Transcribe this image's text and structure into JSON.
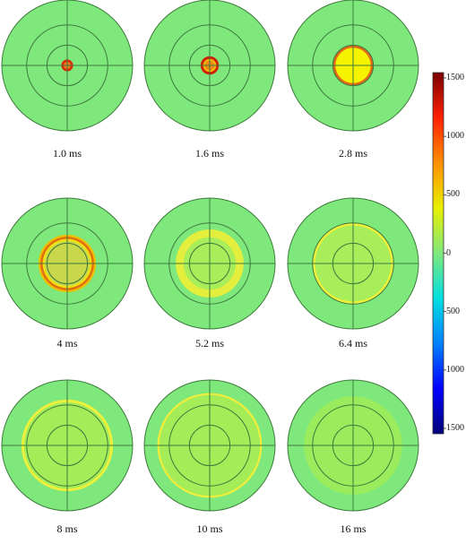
{
  "panels": [
    {
      "label": "1.0 ms",
      "rings": [
        {
          "r": 0.09,
          "color": "#d92a08",
          "fill": true
        },
        {
          "r": 0.055,
          "color": "#f07a1a",
          "fill": true
        }
      ]
    },
    {
      "label": "1.6 ms",
      "rings": [
        {
          "r": 0.14,
          "color": "#d21f07",
          "fill": true
        },
        {
          "r": 0.1,
          "color": "#f0c000",
          "fill": true
        },
        {
          "r": 0.075,
          "color": "#f08a18",
          "fill": true
        }
      ]
    },
    {
      "label": "2.8 ms",
      "rings": [
        {
          "r": 0.31,
          "color": "#e06818",
          "fill": true
        },
        {
          "r": 0.27,
          "color": "#f5f300",
          "fill": true
        }
      ]
    },
    {
      "label": "4 ms",
      "rings": [
        {
          "r": 0.44,
          "color": "#f0c000",
          "fill": true
        },
        {
          "r": 0.41,
          "color": "#e07010",
          "fill": true
        },
        {
          "r": 0.375,
          "color": "#f1e010",
          "fill": true
        },
        {
          "r": 0.345,
          "color": "#c9d84a",
          "fill": true
        }
      ]
    },
    {
      "label": "5.2 ms",
      "rings": [
        {
          "r": 0.52,
          "color": "#e4ee3c",
          "fill": true
        },
        {
          "r": 0.4,
          "color": "#a8ed5a",
          "fill": true
        }
      ]
    },
    {
      "label": "6.4 ms",
      "rings": [
        {
          "r": 0.62,
          "color": "#eef03a",
          "fill": true
        },
        {
          "r": 0.58,
          "color": "#a8ed5a",
          "fill": true
        }
      ]
    },
    {
      "label": "8 ms",
      "rings": [
        {
          "r": 0.7,
          "color": "#eef03a",
          "fill": true
        },
        {
          "r": 0.66,
          "color": "#a4ec58",
          "fill": true
        }
      ]
    },
    {
      "label": "10 ms",
      "rings": [
        {
          "r": 0.8,
          "color": "#f0ee3a",
          "fill": true
        },
        {
          "r": 0.77,
          "color": "#a4ec58",
          "fill": true
        }
      ]
    },
    {
      "label": "16 ms",
      "rings": [
        {
          "r": 0.75,
          "color": "#9aec5c",
          "fill": true
        }
      ]
    }
  ],
  "colors": {
    "background": "#7fe87c",
    "gridline": "#3e7a3e"
  },
  "colorbar": {
    "stops": [
      "#00007a",
      "#0000ff",
      "#0080ff",
      "#00e0e0",
      "#7fe87c",
      "#e8f000",
      "#ff9000",
      "#ff2000",
      "#7a0000"
    ],
    "ticks": [
      "1500",
      "1000",
      "500",
      "0",
      "500",
      "1000",
      "1500"
    ]
  }
}
